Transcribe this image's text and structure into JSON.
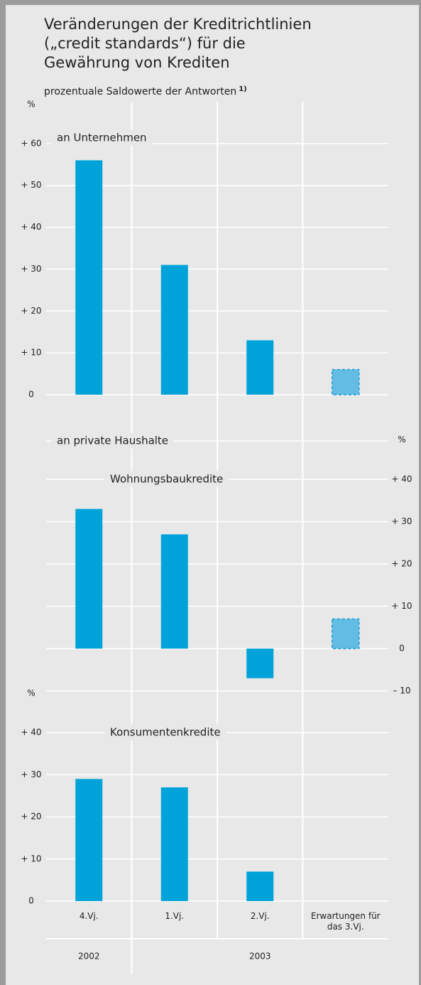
{
  "header": {
    "title_lines": [
      "Veränderungen der Kreditrichtlinien",
      "(„credit standards“) für die",
      "Gewährung von Krediten"
    ],
    "subtitle": "prozentuale Saldowerte der Antworten",
    "footnote_mark": "1)",
    "household_label": "an private Haushalte"
  },
  "chart_data": [
    {
      "type": "bar",
      "label": "an Unternehmen",
      "ylabel": "%",
      "axis_side": "left",
      "grid": true,
      "color": "#00a3d9",
      "dashed_color": "#62bce3",
      "values": [
        56,
        31,
        13,
        6
      ],
      "dashed": [
        false,
        false,
        false,
        true
      ],
      "ylim": [
        0,
        70
      ],
      "yticks": [
        0,
        {
          "value": 10,
          "label": "+ 10"
        },
        {
          "value": 20,
          "label": "+ 20"
        },
        {
          "value": 30,
          "label": "+ 30"
        },
        {
          "value": 40,
          "label": "+ 40"
        },
        {
          "value": 50,
          "label": "+ 50"
        },
        {
          "value": 60,
          "label": "+ 60"
        }
      ]
    },
    {
      "type": "bar",
      "label": "Wohnungsbaukredite",
      "ylabel": "%",
      "axis_side": "right",
      "grid": true,
      "color": "#00a3d9",
      "dashed_color": "#62bce3",
      "values": [
        33,
        27,
        -7,
        7
      ],
      "dashed": [
        false,
        false,
        false,
        true
      ],
      "ylim": [
        -10,
        50
      ],
      "yticks": [
        {
          "value": -10,
          "label": "– 10"
        },
        0,
        {
          "value": 10,
          "label": "+ 10"
        },
        {
          "value": 20,
          "label": "+ 20"
        },
        {
          "value": 30,
          "label": "+ 30"
        },
        {
          "value": 40,
          "label": "+ 40"
        }
      ]
    },
    {
      "type": "bar",
      "label": "Konsumentenkredite",
      "ylabel": "%",
      "axis_side": "left",
      "grid": true,
      "color": "#00a3d9",
      "dashed_color": "#62bce3",
      "values": [
        29,
        27,
        7,
        0
      ],
      "dashed": [
        false,
        false,
        false,
        true
      ],
      "ylim": [
        0,
        50
      ],
      "yticks": [
        0,
        {
          "value": 10,
          "label": "+ 10"
        },
        {
          "value": 20,
          "label": "+ 20"
        },
        {
          "value": 30,
          "label": "+ 30"
        },
        {
          "value": 40,
          "label": "+ 40"
        }
      ],
      "categories": [
        "4.Vj.",
        "1.Vj.",
        "2.Vj.",
        "Erwartungen für das 3.Vj."
      ],
      "x_groups": [
        {
          "label": "2002",
          "span": 1
        },
        {
          "label": "2003",
          "span": 3
        }
      ]
    }
  ]
}
